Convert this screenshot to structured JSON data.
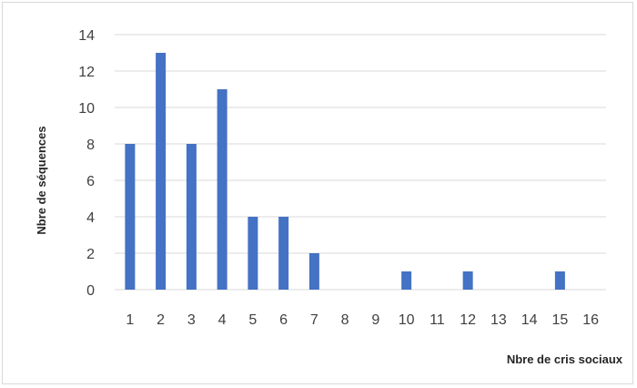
{
  "chart_data": {
    "type": "bar",
    "title": "",
    "xlabel": "Nbre de cris sociaux",
    "ylabel": "Nbre de séquences",
    "categories": [
      "1",
      "2",
      "3",
      "4",
      "5",
      "6",
      "7",
      "8",
      "9",
      "10",
      "11",
      "12",
      "13",
      "14",
      "15",
      "16"
    ],
    "values": [
      8,
      13,
      8,
      11,
      4,
      4,
      2,
      0,
      0,
      1,
      0,
      1,
      0,
      0,
      1,
      0
    ],
    "ylim": [
      0,
      14
    ],
    "yticks": [
      0,
      2,
      4,
      6,
      8,
      10,
      12,
      14
    ],
    "grid": true,
    "legend": "none",
    "bar_color": "#4472c4",
    "grid_color": "#d9d9d9"
  }
}
